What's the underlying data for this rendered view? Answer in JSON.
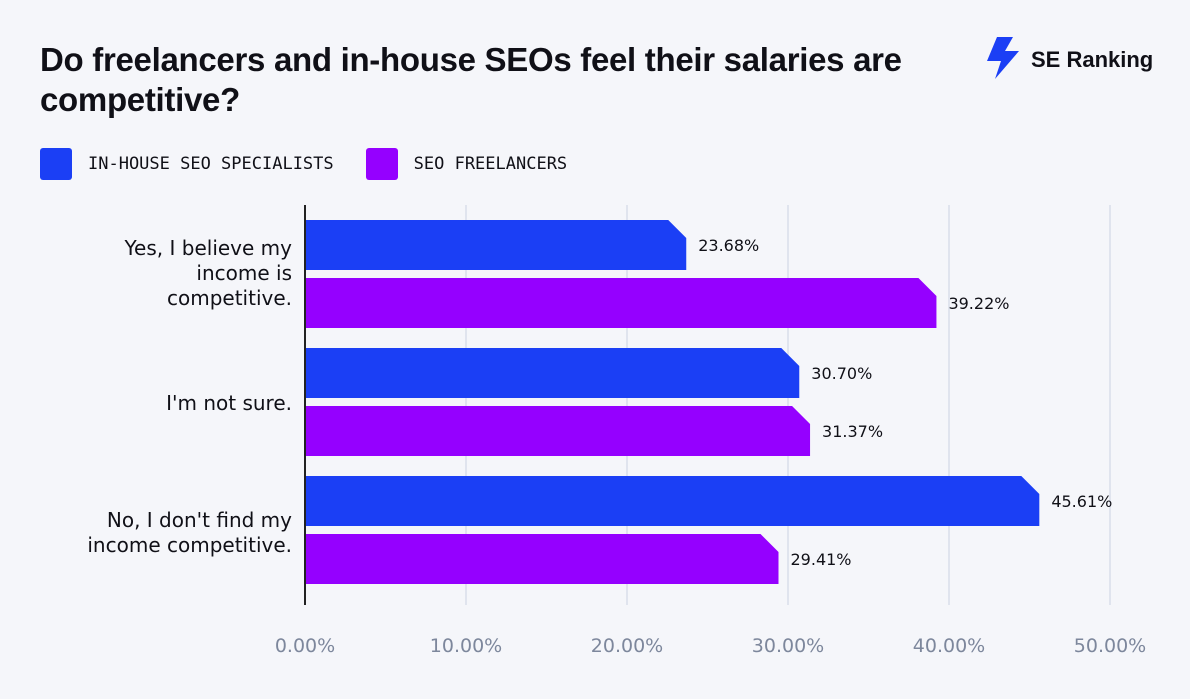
{
  "colors": {
    "background": "#f5f6fa",
    "series_inhouse": "#1b3ff5",
    "series_freelancer": "#9500ff",
    "grid": "#d9deea",
    "axis": "#222222",
    "tick_text": "#7d879c",
    "brand": "#1b3ff5"
  },
  "brand": {
    "name": "SE Ranking",
    "icon": "se-ranking-bolt-logo"
  },
  "chart_data": {
    "type": "bar",
    "orientation": "horizontal",
    "title": "Do freelancers and in-house SEOs feel their salaries are competitive?",
    "categories": [
      "Yes, I believe my income is competitive.",
      "I'm not sure.",
      "No, I don't find my income competitive."
    ],
    "series": [
      {
        "name": "IN-HOUSE SEO SPECIALISTS",
        "values": [
          23.68,
          30.7,
          45.61
        ],
        "labels": [
          "23.68%",
          "30.70%",
          "45.61%"
        ]
      },
      {
        "name": "SEO FREELANCERS",
        "values": [
          39.22,
          31.37,
          29.41
        ],
        "labels": [
          "39.22%",
          "31.37%",
          "29.41%"
        ]
      }
    ],
    "xlim": [
      0,
      50
    ],
    "ticks": [
      0,
      10,
      20,
      30,
      40,
      50
    ],
    "tick_labels": [
      "0.00%",
      "10.00%",
      "20.00%",
      "30.00%",
      "40.00%",
      "50.00%"
    ],
    "grid": true,
    "legend": "top-left"
  }
}
